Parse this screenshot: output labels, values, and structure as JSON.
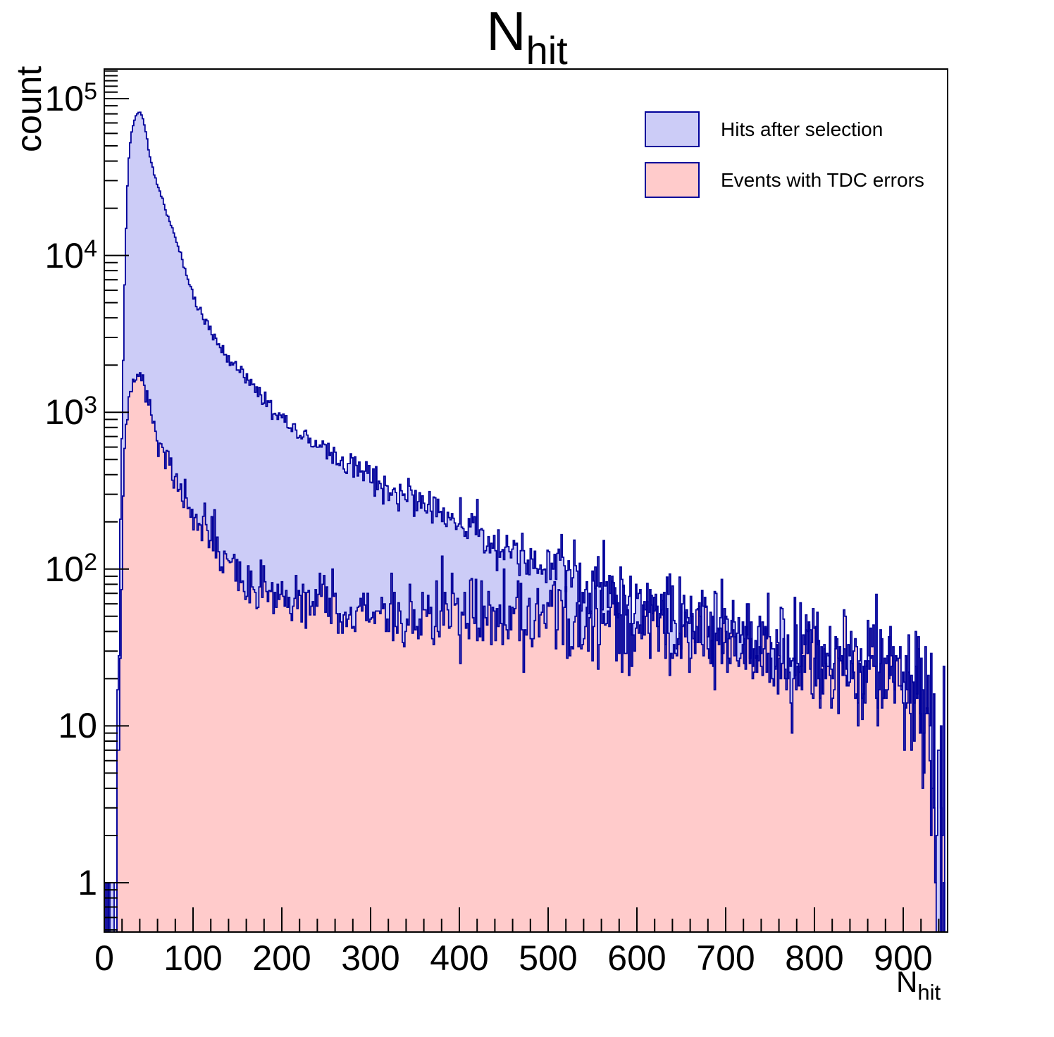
{
  "chart_data": {
    "type": "area",
    "subtype": "step-histogram-filled",
    "y_scale": "log",
    "title": {
      "main": "N",
      "sub": "hit"
    },
    "xlabel": {
      "main": "N",
      "sub": "hit"
    },
    "ylabel": "count",
    "x_range": [
      0,
      950
    ],
    "y_range": [
      0.485,
      155000
    ],
    "grid": false,
    "legend_position": "top-right",
    "frame_color": "#000000",
    "x_major_ticks": [
      0,
      100,
      200,
      300,
      400,
      500,
      600,
      700,
      800,
      900
    ],
    "x_minor_step": 20,
    "y_major_ticks": [
      {
        "v": 1,
        "label": "1"
      },
      {
        "v": 10,
        "label": "10"
      },
      {
        "v": 100,
        "base": "10",
        "exp": "2"
      },
      {
        "v": 1000,
        "base": "10",
        "exp": "3"
      },
      {
        "v": 10000,
        "base": "10",
        "exp": "4"
      },
      {
        "v": 100000,
        "base": "10",
        "exp": "5"
      }
    ],
    "y_extra_minor_ticks": [
      110000,
      120000,
      130000,
      140000,
      150000
    ],
    "series": [
      {
        "name": "Hits after selection",
        "fill": "#ccccf7",
        "line": "#00009a",
        "peak": {
          "x": 39,
          "count": 82000
        },
        "anchors": [
          [
            0,
            0.35
          ],
          [
            10,
            0.45
          ],
          [
            13,
            0.9
          ],
          [
            14,
            2
          ],
          [
            15,
            5
          ],
          [
            16,
            15
          ],
          [
            17,
            45
          ],
          [
            18,
            130
          ],
          [
            19,
            350
          ],
          [
            20,
            800
          ],
          [
            21,
            1700
          ],
          [
            22,
            3200
          ],
          [
            23,
            6500
          ],
          [
            24,
            11000
          ],
          [
            25,
            18000
          ],
          [
            26,
            27000
          ],
          [
            28,
            44000
          ],
          [
            30,
            57000
          ],
          [
            32,
            66000
          ],
          [
            34,
            73000
          ],
          [
            36,
            78000
          ],
          [
            38,
            81000
          ],
          [
            40,
            82000
          ],
          [
            42,
            79000
          ],
          [
            44,
            73000
          ],
          [
            46,
            65000
          ],
          [
            48,
            56000
          ],
          [
            50,
            47000
          ],
          [
            53,
            39000
          ],
          [
            56,
            33500
          ],
          [
            60,
            28000
          ],
          [
            64,
            24000
          ],
          [
            68,
            20500
          ],
          [
            72,
            17500
          ],
          [
            76,
            15000
          ],
          [
            80,
            13000
          ],
          [
            86,
            10200
          ],
          [
            92,
            7800
          ],
          [
            98,
            6000
          ],
          [
            104,
            4900
          ],
          [
            110,
            4150
          ],
          [
            116,
            3600
          ],
          [
            122,
            3200
          ],
          [
            128,
            2820
          ],
          [
            134,
            2480
          ],
          [
            140,
            2200
          ],
          [
            147,
            1980
          ],
          [
            154,
            1780
          ],
          [
            161,
            1580
          ],
          [
            168,
            1420
          ],
          [
            175,
            1280
          ],
          [
            182,
            1160
          ],
          [
            190,
            1030
          ],
          [
            200,
            905
          ],
          [
            210,
            810
          ],
          [
            220,
            740
          ],
          [
            230,
            670
          ],
          [
            240,
            610
          ],
          [
            252,
            550
          ],
          [
            265,
            495
          ],
          [
            278,
            450
          ],
          [
            292,
            405
          ],
          [
            306,
            362
          ],
          [
            320,
            325
          ],
          [
            335,
            295
          ],
          [
            350,
            268
          ],
          [
            366,
            242
          ],
          [
            382,
            218
          ],
          [
            400,
            196
          ],
          [
            420,
            172
          ],
          [
            440,
            152
          ],
          [
            460,
            133
          ],
          [
            480,
            117
          ],
          [
            500,
            104
          ],
          [
            520,
            94
          ],
          [
            540,
            86
          ],
          [
            560,
            79
          ],
          [
            580,
            71
          ],
          [
            600,
            64
          ],
          [
            620,
            58
          ],
          [
            640,
            52
          ],
          [
            660,
            47
          ],
          [
            680,
            43
          ],
          [
            700,
            40
          ],
          [
            720,
            36
          ],
          [
            740,
            33
          ],
          [
            760,
            31
          ],
          [
            780,
            28
          ],
          [
            800,
            26
          ],
          [
            820,
            24
          ],
          [
            845,
            22
          ],
          [
            870,
            21
          ],
          [
            895,
            20
          ],
          [
            915,
            18
          ],
          [
            926,
            16
          ],
          [
            930,
            11
          ],
          [
            933,
            6
          ],
          [
            936,
            3.2
          ],
          [
            940,
            1.7
          ],
          [
            944,
            1.1
          ],
          [
            947,
            0.8
          ]
        ]
      },
      {
        "name": "Events with TDC errors",
        "fill": "#ffcbcb",
        "line": "#00009a",
        "peak": {
          "x": 39,
          "count": 1700
        },
        "anchors": [
          [
            0,
            0.15
          ],
          [
            12,
            0.25
          ],
          [
            14,
            0.6
          ],
          [
            15,
            1.2
          ],
          [
            16,
            3
          ],
          [
            17,
            8
          ],
          [
            18,
            22
          ],
          [
            19,
            60
          ],
          [
            20,
            130
          ],
          [
            21,
            250
          ],
          [
            22,
            400
          ],
          [
            23,
            560
          ],
          [
            24,
            730
          ],
          [
            26,
            980
          ],
          [
            28,
            1230
          ],
          [
            30,
            1400
          ],
          [
            33,
            1550
          ],
          [
            36,
            1650
          ],
          [
            38,
            1690
          ],
          [
            40,
            1700
          ],
          [
            42,
            1640
          ],
          [
            44,
            1530
          ],
          [
            46,
            1390
          ],
          [
            48,
            1250
          ],
          [
            50,
            1110
          ],
          [
            53,
            940
          ],
          [
            56,
            810
          ],
          [
            60,
            690
          ],
          [
            64,
            600
          ],
          [
            68,
            530
          ],
          [
            72,
            470
          ],
          [
            76,
            420
          ],
          [
            80,
            370
          ],
          [
            85,
            325
          ],
          [
            90,
            285
          ],
          [
            95,
            235
          ],
          [
            100,
            215
          ],
          [
            106,
            192
          ],
          [
            112,
            172
          ],
          [
            118,
            155
          ],
          [
            124,
            140
          ],
          [
            130,
            127
          ],
          [
            137,
            115
          ],
          [
            144,
            105
          ],
          [
            151,
            96
          ],
          [
            158,
            89
          ],
          [
            166,
            82
          ],
          [
            174,
            76
          ],
          [
            182,
            72
          ],
          [
            190,
            68
          ],
          [
            200,
            64
          ],
          [
            212,
            61
          ],
          [
            224,
            59
          ],
          [
            238,
            57
          ],
          [
            252,
            55
          ],
          [
            268,
            54
          ],
          [
            285,
            53
          ],
          [
            305,
            52
          ],
          [
            330,
            51
          ],
          [
            360,
            50
          ],
          [
            390,
            49
          ],
          [
            420,
            48
          ],
          [
            450,
            47
          ],
          [
            480,
            46
          ],
          [
            510,
            45
          ],
          [
            540,
            44
          ],
          [
            570,
            43
          ],
          [
            600,
            41
          ],
          [
            630,
            39
          ],
          [
            660,
            37
          ],
          [
            690,
            35
          ],
          [
            720,
            32
          ],
          [
            750,
            30
          ],
          [
            780,
            28
          ],
          [
            805,
            26
          ],
          [
            830,
            24
          ],
          [
            855,
            23
          ],
          [
            880,
            21
          ],
          [
            900,
            20
          ],
          [
            915,
            19
          ],
          [
            926,
            17
          ],
          [
            930,
            11
          ],
          [
            933,
            6
          ],
          [
            936,
            3
          ],
          [
            940,
            1.5
          ],
          [
            944,
            1
          ],
          [
            947,
            0.7
          ]
        ]
      }
    ]
  }
}
